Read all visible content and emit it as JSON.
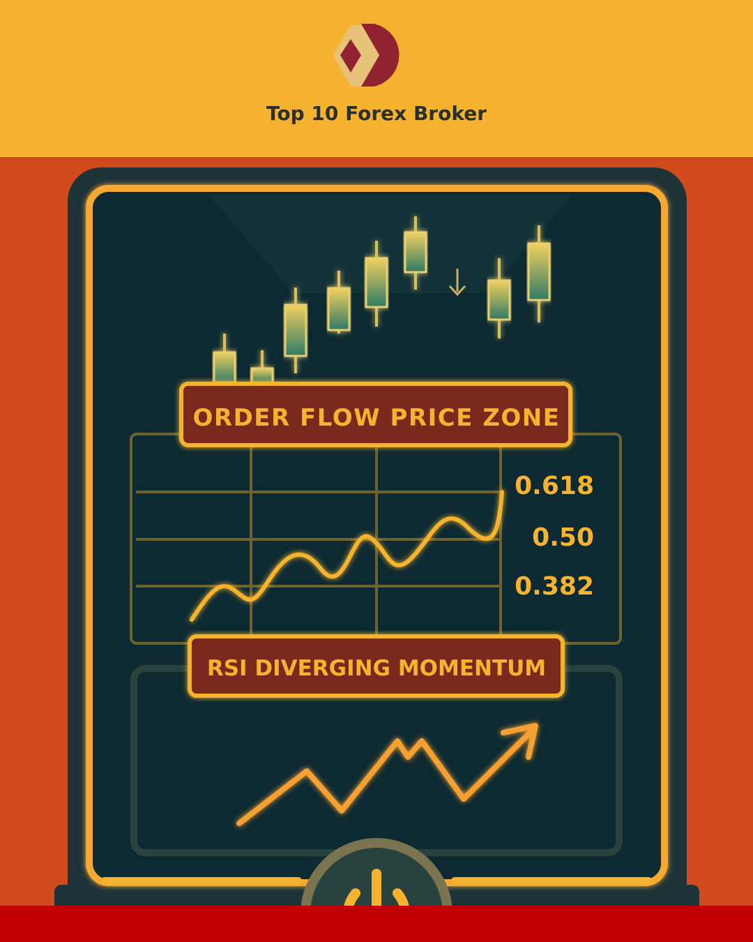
{
  "header": {
    "brand": "Top 10 Forex Broker",
    "logo_icon": "diamond-d-logo"
  },
  "panel": {
    "title_label": "ORDER FLOW PRICE ZONE",
    "fib_levels": [
      "0.618",
      "0.50",
      "0.382"
    ],
    "rsi_label": "RSI DIVERGING MOMENTUM",
    "power_icon": "power-icon"
  },
  "colors": {
    "top": "#f5b32f",
    "background": "#d04a1e",
    "bottom_bar": "#c00000",
    "accent": "#f5b32f",
    "panel": "#0f2a30",
    "label_fill": "#7a2a1a"
  }
}
